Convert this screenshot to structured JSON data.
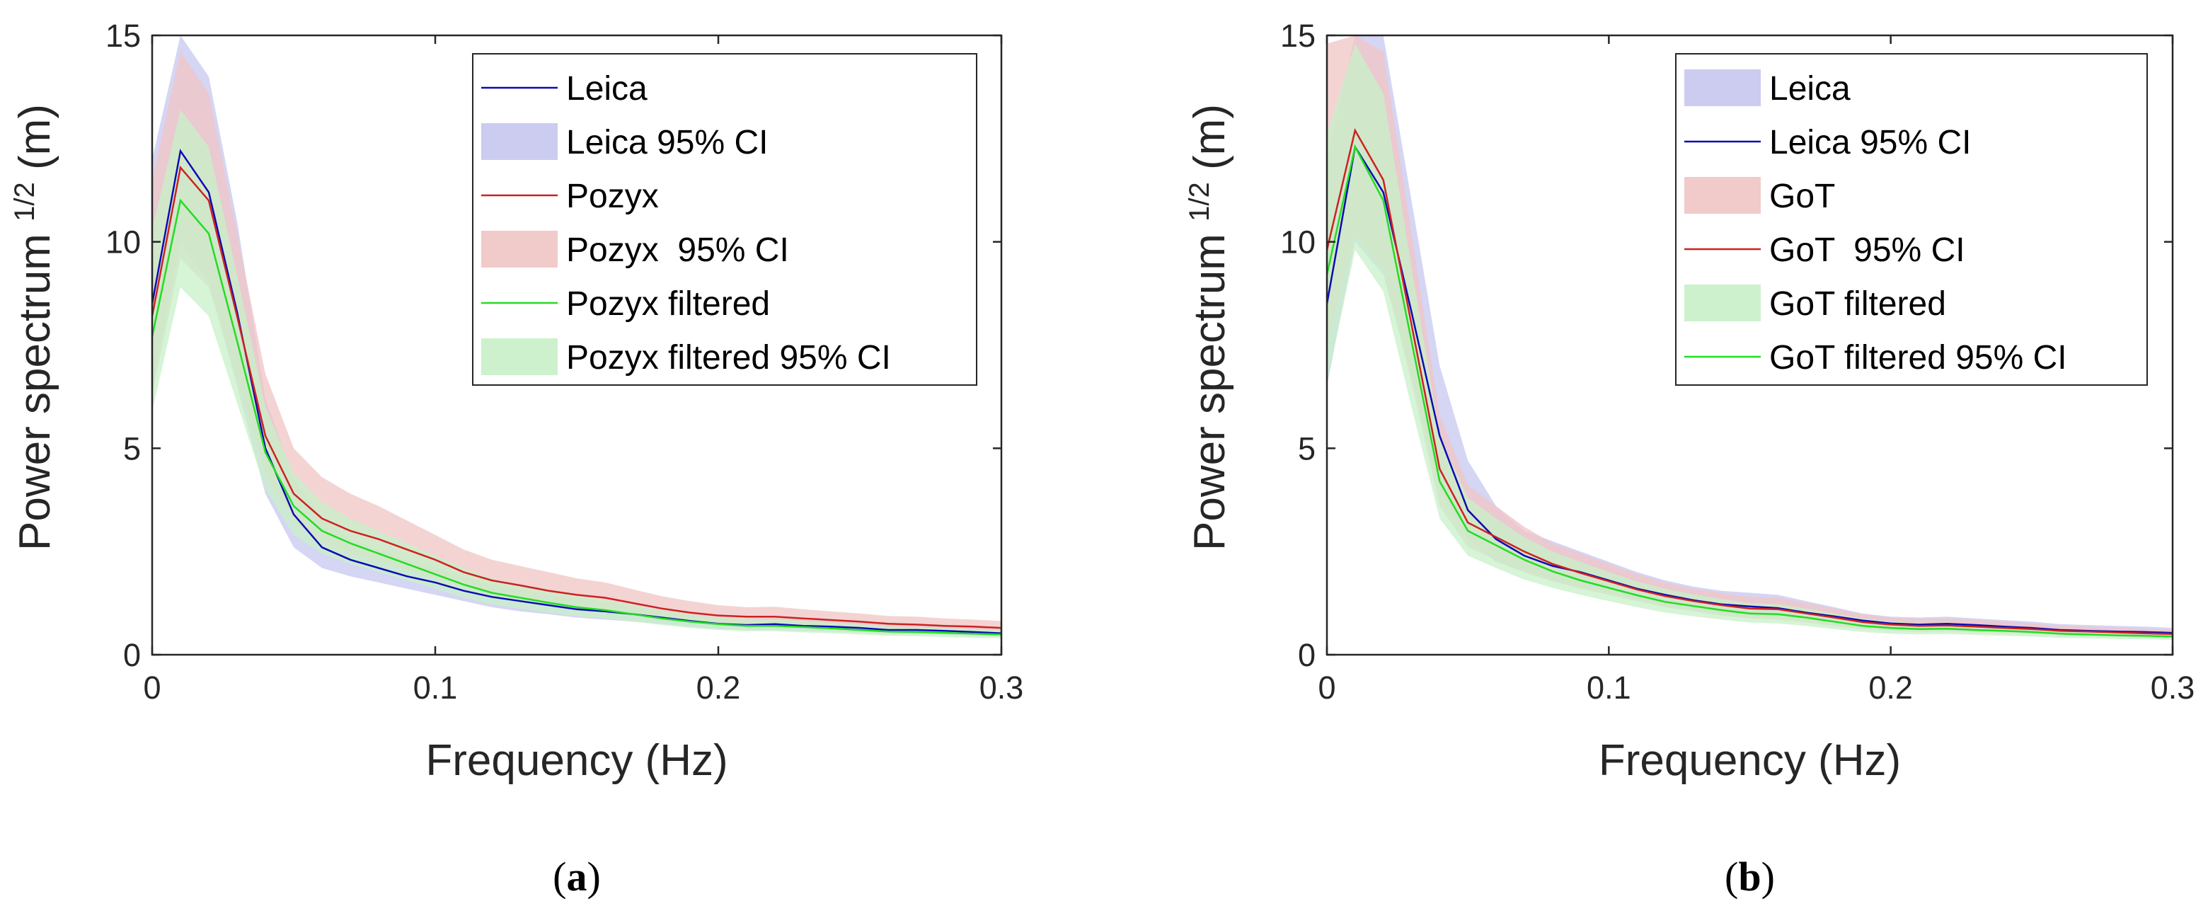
{
  "colors": {
    "leica": "#0b0bb4",
    "leica_ci": "#c7c7f0",
    "red": "#cc2222",
    "red_ci": "#f0c4c4",
    "green": "#22dd22",
    "green_ci": "#c8f0c8",
    "axis": "#262626"
  },
  "chart_data": [
    {
      "type": "line",
      "caption_open": "(",
      "caption_letter": "a",
      "caption_close": ")",
      "xlabel": "Frequency (Hz)",
      "ylabel": "Power spectrum",
      "ylabel_sup": "1/2",
      "ylabel_unit": "(m)",
      "xlim": [
        0,
        0.3
      ],
      "ylim": [
        0,
        15
      ],
      "xticks": [
        0,
        0.1,
        0.2,
        0.3
      ],
      "xtick_labels": [
        "0",
        "0.1",
        "0.2",
        "0.3"
      ],
      "yticks": [
        0,
        5,
        10,
        15
      ],
      "ytick_labels": [
        "0",
        "5",
        "10",
        "15"
      ],
      "legend_position": "top-right",
      "legend": [
        "Leica",
        "Leica 95% CI",
        "Pozyx",
        "Pozyx  95% CI",
        "Pozyx filtered",
        "Pozyx filtered 95% CI"
      ],
      "x": [
        0,
        0.01,
        0.02,
        0.03,
        0.04,
        0.05,
        0.06,
        0.07,
        0.08,
        0.09,
        0.1,
        0.11,
        0.12,
        0.13,
        0.14,
        0.15,
        0.16,
        0.17,
        0.18,
        0.19,
        0.2,
        0.21,
        0.22,
        0.23,
        0.24,
        0.25,
        0.26,
        0.27,
        0.28,
        0.29,
        0.3
      ],
      "series": [
        {
          "name": "Leica",
          "kind": "line",
          "color_key": "leica",
          "values": [
            8.5,
            12.2,
            11.2,
            8.3,
            5.0,
            3.4,
            2.6,
            2.3,
            2.1,
            1.9,
            1.75,
            1.55,
            1.4,
            1.3,
            1.2,
            1.1,
            1.05,
            0.98,
            0.9,
            0.82,
            0.75,
            0.72,
            0.74,
            0.7,
            0.68,
            0.65,
            0.6,
            0.6,
            0.58,
            0.55,
            0.52
          ]
        },
        {
          "name": "Leica 95% CI",
          "kind": "band",
          "color_key": "leica_ci",
          "lower": [
            6.5,
            10.0,
            9.0,
            6.5,
            3.9,
            2.6,
            2.1,
            1.9,
            1.75,
            1.6,
            1.45,
            1.3,
            1.15,
            1.05,
            0.98,
            0.9,
            0.85,
            0.8,
            0.75,
            0.68,
            0.62,
            0.6,
            0.6,
            0.58,
            0.56,
            0.54,
            0.5,
            0.5,
            0.48,
            0.46,
            0.44
          ],
          "upper": [
            12.0,
            15.0,
            14.0,
            10.5,
            6.2,
            4.3,
            3.3,
            2.8,
            2.55,
            2.3,
            2.1,
            1.9,
            1.7,
            1.58,
            1.45,
            1.35,
            1.28,
            1.18,
            1.08,
            0.98,
            0.9,
            0.86,
            0.88,
            0.84,
            0.82,
            0.78,
            0.72,
            0.72,
            0.7,
            0.66,
            0.62
          ]
        },
        {
          "name": "Pozyx",
          "kind": "line",
          "color_key": "red",
          "values": [
            8.2,
            11.8,
            11.0,
            8.2,
            5.3,
            3.9,
            3.3,
            3.0,
            2.8,
            2.55,
            2.3,
            2.0,
            1.8,
            1.68,
            1.55,
            1.45,
            1.38,
            1.25,
            1.12,
            1.02,
            0.95,
            0.92,
            0.92,
            0.88,
            0.84,
            0.8,
            0.75,
            0.73,
            0.7,
            0.68,
            0.65
          ]
        },
        {
          "name": "Pozyx  95% CI",
          "kind": "band",
          "color_key": "red_ci",
          "lower": [
            6.3,
            9.6,
            8.9,
            6.7,
            4.4,
            3.2,
            2.7,
            2.45,
            2.25,
            2.05,
            1.85,
            1.62,
            1.45,
            1.35,
            1.25,
            1.17,
            1.1,
            1.0,
            0.9,
            0.82,
            0.76,
            0.74,
            0.74,
            0.7,
            0.67,
            0.64,
            0.6,
            0.58,
            0.56,
            0.54,
            0.52
          ],
          "upper": [
            11.5,
            14.6,
            13.6,
            10.2,
            6.8,
            5.0,
            4.3,
            3.9,
            3.6,
            3.25,
            2.9,
            2.55,
            2.3,
            2.15,
            2.0,
            1.85,
            1.75,
            1.58,
            1.42,
            1.3,
            1.2,
            1.15,
            1.16,
            1.1,
            1.05,
            1.0,
            0.94,
            0.92,
            0.88,
            0.85,
            0.82
          ]
        },
        {
          "name": "Pozyx filtered",
          "kind": "line",
          "color_key": "green",
          "values": [
            7.7,
            11.0,
            10.2,
            7.6,
            4.9,
            3.6,
            3.0,
            2.7,
            2.45,
            2.2,
            1.95,
            1.7,
            1.5,
            1.38,
            1.26,
            1.15,
            1.08,
            0.98,
            0.88,
            0.8,
            0.74,
            0.7,
            0.7,
            0.67,
            0.64,
            0.6,
            0.56,
            0.55,
            0.53,
            0.51,
            0.49
          ]
        },
        {
          "name": "Pozyx filtered 95% CI",
          "kind": "band",
          "color_key": "green_ci",
          "lower": [
            5.9,
            8.9,
            8.2,
            6.1,
            4.0,
            2.9,
            2.45,
            2.2,
            2.0,
            1.8,
            1.6,
            1.38,
            1.22,
            1.12,
            1.02,
            0.93,
            0.88,
            0.8,
            0.72,
            0.65,
            0.6,
            0.57,
            0.57,
            0.54,
            0.52,
            0.49,
            0.46,
            0.45,
            0.43,
            0.41,
            0.4
          ],
          "upper": [
            10.3,
            13.2,
            12.3,
            9.2,
            6.0,
            4.4,
            3.7,
            3.3,
            3.0,
            2.7,
            2.4,
            2.1,
            1.85,
            1.7,
            1.55,
            1.42,
            1.33,
            1.2,
            1.08,
            0.98,
            0.9,
            0.86,
            0.86,
            0.82,
            0.78,
            0.74,
            0.69,
            0.67,
            0.65,
            0.62,
            0.6
          ]
        }
      ]
    },
    {
      "type": "line",
      "caption_open": "(",
      "caption_letter": "b",
      "caption_close": ")",
      "xlabel": "Frequency (Hz)",
      "ylabel": "Power spectrum",
      "ylabel_sup": "1/2",
      "ylabel_unit": "(m)",
      "xlim": [
        0,
        0.3
      ],
      "ylim": [
        0,
        15
      ],
      "xticks": [
        0,
        0.1,
        0.2,
        0.3
      ],
      "xtick_labels": [
        "0",
        "0.1",
        "0.2",
        "0.3"
      ],
      "yticks": [
        0,
        5,
        10,
        15
      ],
      "ytick_labels": [
        "0",
        "5",
        "10",
        "15"
      ],
      "legend_position": "top-right",
      "legend": [
        "Leica",
        "Leica 95% CI",
        "GoT",
        "GoT  95% CI",
        "GoT filtered",
        "GoT filtered 95% CI"
      ],
      "x": [
        0,
        0.01,
        0.02,
        0.03,
        0.04,
        0.05,
        0.06,
        0.07,
        0.08,
        0.09,
        0.1,
        0.11,
        0.12,
        0.13,
        0.14,
        0.15,
        0.16,
        0.17,
        0.18,
        0.19,
        0.2,
        0.21,
        0.22,
        0.23,
        0.24,
        0.25,
        0.26,
        0.27,
        0.28,
        0.29,
        0.3
      ],
      "series": [
        {
          "name": "Leica",
          "kind": "band",
          "color_key": "leica_ci",
          "lower": [
            6.5,
            10.0,
            9.2,
            6.8,
            4.0,
            2.8,
            2.25,
            2.0,
            1.8,
            1.65,
            1.5,
            1.35,
            1.2,
            1.1,
            1.0,
            0.95,
            0.92,
            0.85,
            0.78,
            0.7,
            0.65,
            0.62,
            0.62,
            0.6,
            0.58,
            0.55,
            0.52,
            0.5,
            0.48,
            0.47,
            0.45
          ],
          "upper": [
            12.0,
            15.0,
            15.0,
            11.0,
            7.0,
            4.7,
            3.6,
            3.0,
            2.75,
            2.5,
            2.25,
            2.0,
            1.8,
            1.65,
            1.55,
            1.5,
            1.45,
            1.3,
            1.15,
            1.0,
            0.92,
            0.9,
            0.92,
            0.88,
            0.84,
            0.8,
            0.74,
            0.72,
            0.7,
            0.68,
            0.65
          ]
        },
        {
          "name": "Leica 95% CI",
          "kind": "line",
          "color_key": "leica",
          "values": [
            8.5,
            12.3,
            11.2,
            8.3,
            5.3,
            3.5,
            2.8,
            2.4,
            2.15,
            2.0,
            1.8,
            1.6,
            1.45,
            1.32,
            1.22,
            1.17,
            1.13,
            1.02,
            0.93,
            0.83,
            0.76,
            0.73,
            0.75,
            0.72,
            0.68,
            0.65,
            0.6,
            0.58,
            0.56,
            0.55,
            0.53
          ]
        },
        {
          "name": "GoT",
          "kind": "band",
          "color_key": "red_ci",
          "lower": [
            7.5,
            10.2,
            9.3,
            6.6,
            3.6,
            2.6,
            2.3,
            2.0,
            1.78,
            1.6,
            1.45,
            1.3,
            1.15,
            1.05,
            0.95,
            0.88,
            0.85,
            0.78,
            0.7,
            0.62,
            0.58,
            0.55,
            0.56,
            0.54,
            0.52,
            0.5,
            0.47,
            0.46,
            0.44,
            0.42,
            0.41
          ],
          "upper": [
            14.8,
            15.0,
            14.6,
            10.2,
            5.8,
            4.1,
            3.6,
            3.1,
            2.7,
            2.45,
            2.2,
            1.95,
            1.75,
            1.6,
            1.5,
            1.4,
            1.38,
            1.25,
            1.12,
            0.98,
            0.9,
            0.87,
            0.88,
            0.84,
            0.8,
            0.76,
            0.7,
            0.68,
            0.66,
            0.63,
            0.6
          ]
        },
        {
          "name": "GoT  95% CI",
          "kind": "line",
          "color_key": "red",
          "values": [
            9.8,
            12.7,
            11.5,
            8.0,
            4.5,
            3.2,
            2.85,
            2.5,
            2.2,
            1.98,
            1.78,
            1.58,
            1.42,
            1.3,
            1.2,
            1.12,
            1.1,
            1.0,
            0.9,
            0.79,
            0.73,
            0.7,
            0.71,
            0.68,
            0.65,
            0.62,
            0.58,
            0.56,
            0.54,
            0.52,
            0.5
          ]
        },
        {
          "name": "GoT filtered",
          "kind": "band",
          "color_key": "green_ci",
          "lower": [
            6.6,
            9.8,
            8.8,
            6.0,
            3.3,
            2.4,
            2.1,
            1.82,
            1.62,
            1.45,
            1.3,
            1.15,
            1.02,
            0.93,
            0.85,
            0.78,
            0.76,
            0.7,
            0.62,
            0.55,
            0.51,
            0.49,
            0.5,
            0.48,
            0.46,
            0.44,
            0.41,
            0.4,
            0.38,
            0.37,
            0.36
          ],
          "upper": [
            12.6,
            14.8,
            13.6,
            9.4,
            5.3,
            3.8,
            3.3,
            2.85,
            2.5,
            2.25,
            2.0,
            1.78,
            1.6,
            1.46,
            1.35,
            1.25,
            1.22,
            1.12,
            1.0,
            0.88,
            0.8,
            0.77,
            0.78,
            0.74,
            0.7,
            0.67,
            0.62,
            0.6,
            0.58,
            0.56,
            0.54
          ]
        },
        {
          "name": "GoT filtered 95% CI",
          "kind": "line",
          "color_key": "green",
          "values": [
            9.2,
            12.3,
            11.0,
            7.6,
            4.2,
            3.0,
            2.65,
            2.3,
            2.02,
            1.8,
            1.62,
            1.44,
            1.28,
            1.18,
            1.08,
            1.0,
            0.98,
            0.9,
            0.8,
            0.7,
            0.65,
            0.62,
            0.63,
            0.6,
            0.58,
            0.55,
            0.51,
            0.49,
            0.47,
            0.46,
            0.44
          ]
        }
      ]
    }
  ]
}
